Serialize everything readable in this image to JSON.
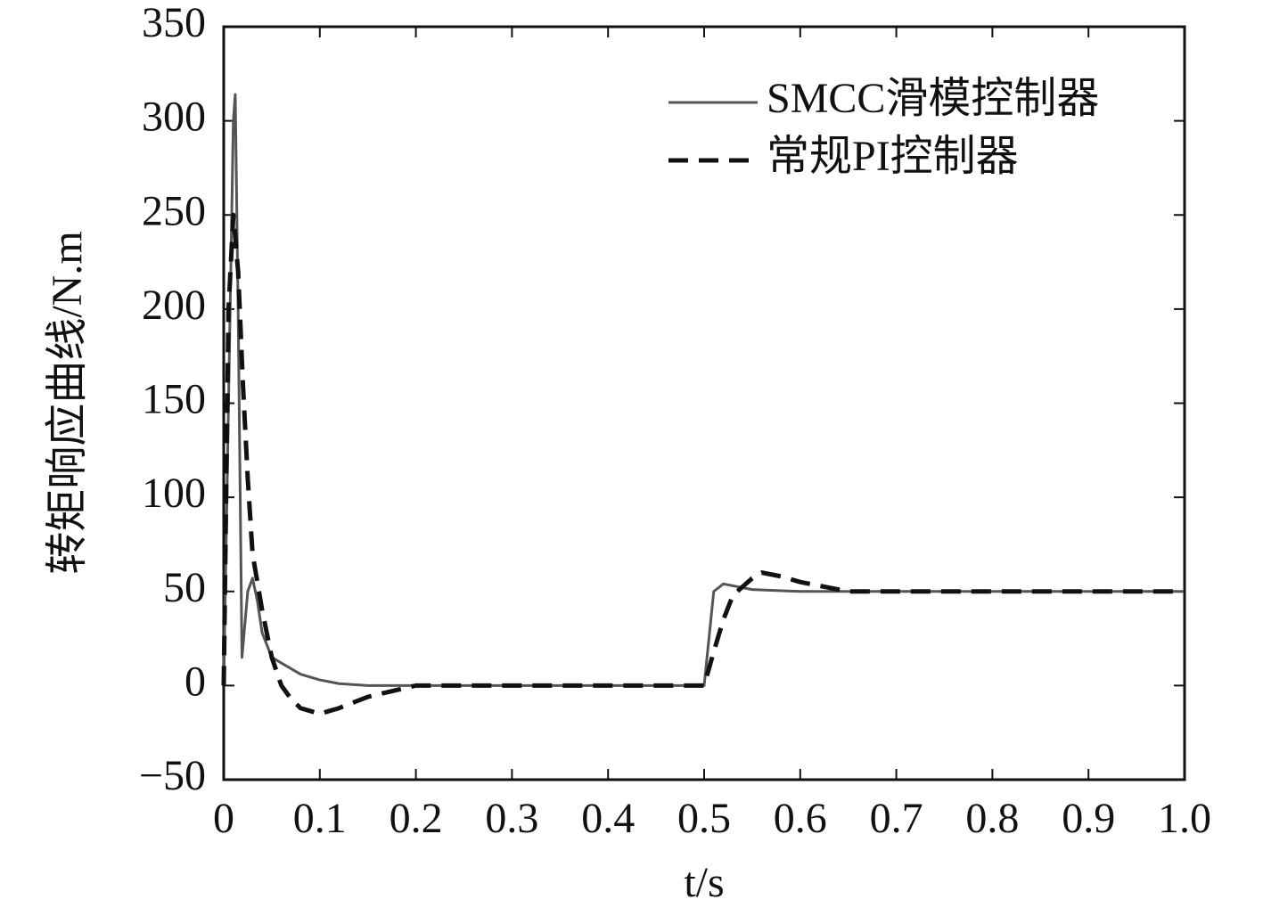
{
  "chart_data": {
    "type": "line",
    "x_label": "t/s",
    "y_label": "转矩响应曲线/N.m",
    "xlim": [
      0,
      1
    ],
    "xticks": [
      0,
      0.1,
      0.2,
      0.3,
      0.4,
      0.5,
      0.6,
      0.7,
      0.8,
      0.9,
      {
        "value": 1,
        "label": "1.0"
      }
    ],
    "ylim": [
      -50,
      350
    ],
    "yticks": [
      {
        "value": -50,
        "label": "−50"
      },
      0,
      50,
      100,
      150,
      200,
      250,
      300,
      350
    ],
    "legend": "upper right",
    "series": [
      {
        "name": "SMCC滑模控制器",
        "color": "#555555",
        "dash": "solid",
        "x": [
          0,
          0.005,
          0.01,
          0.012,
          0.015,
          0.019,
          0.025,
          0.03,
          0.035,
          0.04,
          0.05,
          0.06,
          0.08,
          0.1,
          0.12,
          0.15,
          0.2,
          0.3,
          0.4,
          0.49,
          0.5,
          0.505,
          0.51,
          0.52,
          0.55,
          0.6,
          0.7,
          0.8,
          0.9,
          1.0
        ],
        "values": [
          0,
          150,
          300,
          314,
          200,
          15,
          50,
          57,
          45,
          28,
          15,
          12,
          6,
          3,
          1,
          0,
          0,
          0,
          0,
          0,
          0,
          25,
          50,
          54,
          51,
          50,
          50,
          50,
          50,
          50
        ]
      },
      {
        "name": "常规PI控制器",
        "color": "#111111",
        "dash": "dashed",
        "x": [
          0,
          0.005,
          0.01,
          0.015,
          0.02,
          0.025,
          0.03,
          0.04,
          0.05,
          0.06,
          0.07,
          0.08,
          0.1,
          0.12,
          0.15,
          0.2,
          0.3,
          0.4,
          0.49,
          0.5,
          0.51,
          0.52,
          0.53,
          0.55,
          0.56,
          0.58,
          0.6,
          0.65,
          0.7,
          0.8,
          0.9,
          1.0
        ],
        "values": [
          0,
          200,
          250,
          220,
          160,
          110,
          70,
          40,
          15,
          0,
          -7,
          -12,
          -15,
          -12,
          -6,
          0,
          0,
          0,
          0,
          0,
          18,
          35,
          48,
          57,
          60,
          58,
          55,
          50,
          50,
          50,
          50,
          50
        ]
      }
    ]
  }
}
